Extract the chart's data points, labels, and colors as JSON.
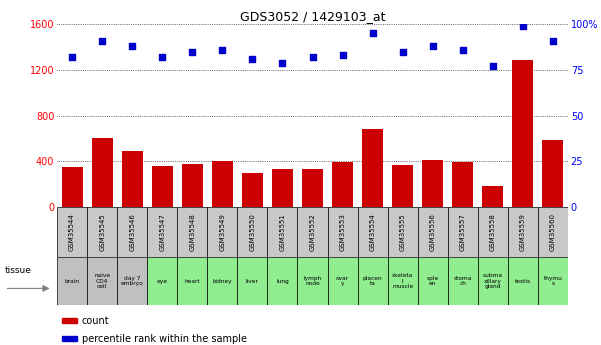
{
  "title": "GDS3052 / 1429103_at",
  "samples": [
    "GSM35544",
    "GSM35545",
    "GSM35546",
    "GSM35547",
    "GSM35548",
    "GSM35549",
    "GSM35550",
    "GSM35551",
    "GSM35552",
    "GSM35553",
    "GSM35554",
    "GSM35555",
    "GSM35556",
    "GSM35557",
    "GSM35558",
    "GSM35559",
    "GSM35560"
  ],
  "tissues": [
    "brain",
    "naive\nCD4\ncell",
    "day 7\nembryо",
    "eye",
    "heart",
    "kidney",
    "liver",
    "lung",
    "lymph\nnode",
    "ovar\ny",
    "placen\nta",
    "skeleta\nl\nmuscle",
    "sple\nen",
    "stoma\nch",
    "subma\nxillary\ngland",
    "testis",
    "thymu\ns"
  ],
  "tissue_colors": [
    "#c0c0c0",
    "#c0c0c0",
    "#c0c0c0",
    "#90ee90",
    "#90ee90",
    "#90ee90",
    "#90ee90",
    "#90ee90",
    "#90ee90",
    "#90ee90",
    "#90ee90",
    "#90ee90",
    "#90ee90",
    "#90ee90",
    "#90ee90",
    "#90ee90",
    "#90ee90"
  ],
  "counts": [
    350,
    600,
    490,
    360,
    380,
    400,
    300,
    330,
    330,
    390,
    680,
    370,
    410,
    390,
    180,
    1290,
    590
  ],
  "percentiles": [
    82,
    91,
    88,
    82,
    85,
    86,
    81,
    79,
    82,
    83,
    95,
    85,
    88,
    86,
    77,
    99,
    91
  ],
  "ylim_left": [
    0,
    1600
  ],
  "ylim_right": [
    0,
    100
  ],
  "yticks_left": [
    0,
    400,
    800,
    1200,
    1600
  ],
  "yticks_right": [
    0,
    25,
    50,
    75,
    100
  ],
  "bar_color": "#cc0000",
  "dot_color": "#0000cc",
  "gsm_cell_color": "#c8c8c8",
  "legend_count_label": "count",
  "legend_pct_label": "percentile rank within the sample"
}
